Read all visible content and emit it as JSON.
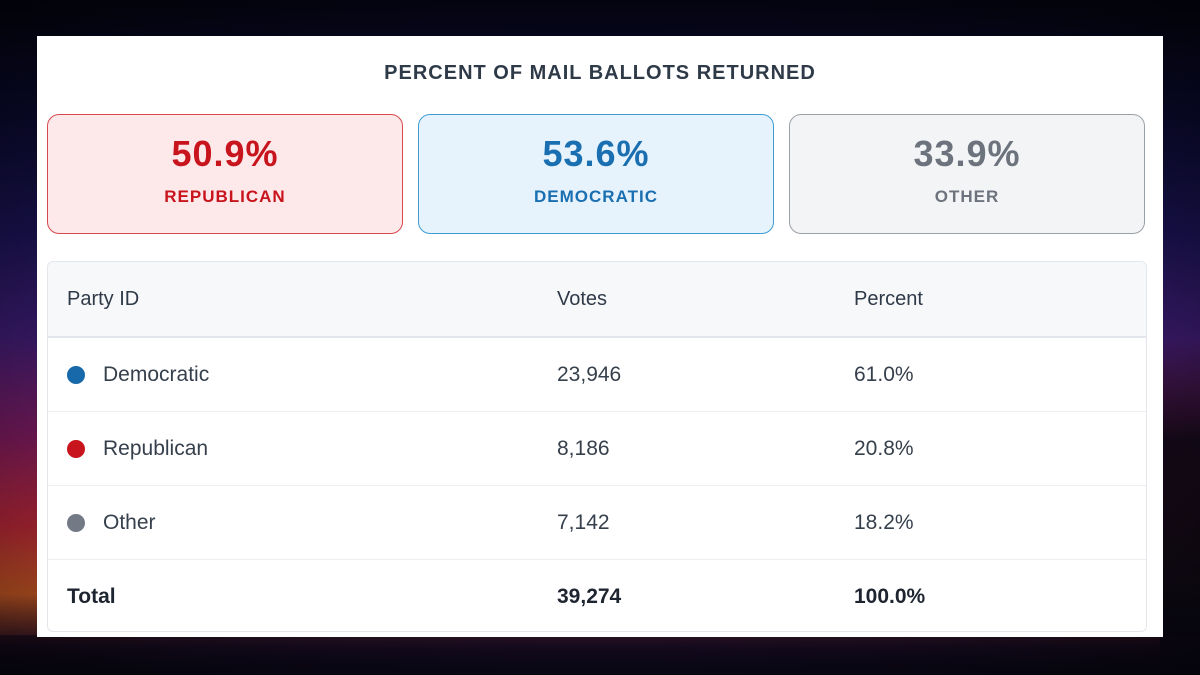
{
  "header": {
    "title": "PERCENT OF MAIL BALLOTS RETURNED"
  },
  "stats": [
    {
      "value": "50.9%",
      "label": "REPUBLICAN",
      "color": "#c8141c"
    },
    {
      "value": "53.6%",
      "label": "DEMOCRATIC",
      "color": "#1a6fb0"
    },
    {
      "value": "33.9%",
      "label": "OTHER",
      "color": "#6c737d"
    }
  ],
  "table": {
    "columns": [
      "Party ID",
      "Votes",
      "Percent"
    ],
    "rows": [
      {
        "party": "Democratic",
        "votes": "23,946",
        "percent": "61.0%",
        "color": "#1769aa"
      },
      {
        "party": "Republican",
        "votes": "8,186",
        "percent": "20.8%",
        "color": "#c8141c"
      },
      {
        "party": "Other",
        "votes": "7,142",
        "percent": "18.2%",
        "color": "#737a85"
      }
    ],
    "total": {
      "label": "Total",
      "votes": "39,274",
      "percent": "100.0%"
    }
  }
}
